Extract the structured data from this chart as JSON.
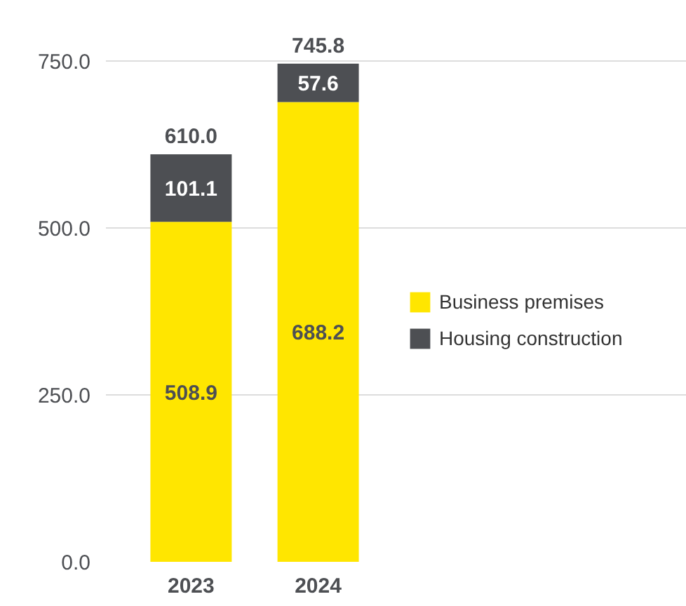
{
  "chart_data": {
    "type": "bar",
    "stacked": true,
    "categories": [
      "2023",
      "2024"
    ],
    "series": [
      {
        "name": "Business premises",
        "color": "#ffe600",
        "values": [
          508.9,
          688.2
        ]
      },
      {
        "name": "Housing construction",
        "color": "#4d4f53",
        "values": [
          101.1,
          57.6
        ]
      }
    ],
    "totals": [
      "610.0",
      "745.8"
    ],
    "data_labels": true,
    "ylim": [
      0,
      750
    ],
    "yticks": [
      {
        "value": 0,
        "label": "0.0"
      },
      {
        "value": 250,
        "label": "250.0"
      },
      {
        "value": 500,
        "label": "500.0"
      },
      {
        "value": 750,
        "label": "750.0"
      }
    ],
    "grid": "y",
    "legend": "right"
  }
}
